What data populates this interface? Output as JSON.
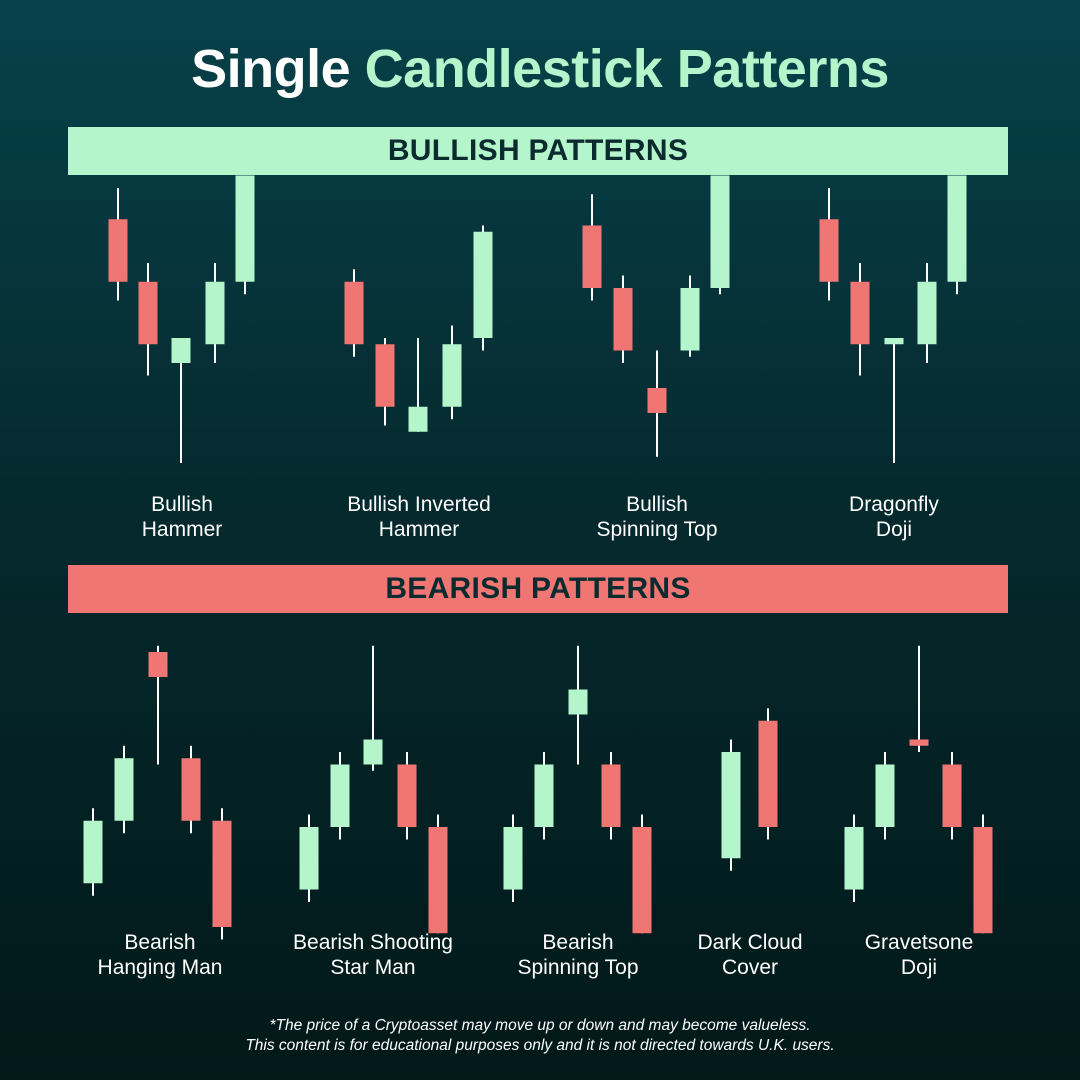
{
  "title": {
    "part1": "Single",
    "part2": "Candlestick Patterns"
  },
  "colors": {
    "bull": "#b5f5cc",
    "bear": "#f07673",
    "wick": "#ffffff"
  },
  "sections": {
    "bullish": {
      "heading": "BULLISH PATTERNS"
    },
    "bearish": {
      "heading": "BEARISH PATTERNS"
    }
  },
  "labels": {
    "bullish_hammer": [
      "Bullish",
      "Hammer"
    ],
    "bullish_inverted_hammer": [
      "Bullish Inverted",
      "Hammer"
    ],
    "bullish_spinning_top": [
      "Bullish",
      "Spinning Top"
    ],
    "dragonfly_doji": [
      "Dragonfly",
      "Doji"
    ],
    "bearish_hanging_man": [
      "Bearish",
      "Hanging Man"
    ],
    "bearish_shooting_star": [
      "Bearish Shooting",
      "Star Man"
    ],
    "bearish_spinning_top": [
      "Bearish",
      "Spinning Top"
    ],
    "dark_cloud_cover": [
      "Dark Cloud",
      "Cover"
    ],
    "gravestone_doji": [
      "Gravetsone",
      "Doji"
    ]
  },
  "disclaimer": [
    "*The price of a Cryptoasset may move up or down and may become valueless.",
    "This content is for educational purposes only and it is not directed towards U.K. users."
  ],
  "chart_data": [
    {
      "type": "candlestick",
      "name": "Bullish Hammer",
      "section": "bullish",
      "candles": [
        {
          "o": 77,
          "h": 82,
          "l": 64,
          "c": 67
        },
        {
          "o": 67,
          "h": 70,
          "l": 52,
          "c": 57
        },
        {
          "o": 54,
          "h": 58,
          "l": 38,
          "c": 58
        },
        {
          "o": 57,
          "h": 70,
          "l": 54,
          "c": 67
        },
        {
          "o": 67,
          "h": 84,
          "l": 65,
          "c": 84
        }
      ]
    },
    {
      "type": "candlestick",
      "name": "Bullish Inverted Hammer",
      "section": "bullish",
      "candles": [
        {
          "o": 67,
          "h": 69,
          "l": 55,
          "c": 57
        },
        {
          "o": 57,
          "h": 58,
          "l": 44,
          "c": 47
        },
        {
          "o": 43,
          "h": 58,
          "l": 43,
          "c": 47
        },
        {
          "o": 47,
          "h": 60,
          "l": 45,
          "c": 57
        },
        {
          "o": 58,
          "h": 76,
          "l": 56,
          "c": 75
        }
      ]
    },
    {
      "type": "candlestick",
      "name": "Bullish Spinning Top",
      "section": "bullish",
      "candles": [
        {
          "o": 76,
          "h": 81,
          "l": 64,
          "c": 66
        },
        {
          "o": 66,
          "h": 68,
          "l": 54,
          "c": 56
        },
        {
          "o": 50,
          "h": 56,
          "l": 39,
          "c": 46
        },
        {
          "o": 56,
          "h": 68,
          "l": 55,
          "c": 66
        },
        {
          "o": 66,
          "h": 84,
          "l": 65,
          "c": 84
        }
      ]
    },
    {
      "type": "candlestick",
      "name": "Dragonfly Doji",
      "section": "bullish",
      "candles": [
        {
          "o": 77,
          "h": 82,
          "l": 64,
          "c": 67
        },
        {
          "o": 67,
          "h": 70,
          "l": 52,
          "c": 57
        },
        {
          "o": 57,
          "h": 58,
          "l": 38,
          "c": 58
        },
        {
          "o": 57,
          "h": 70,
          "l": 54,
          "c": 67
        },
        {
          "o": 67,
          "h": 84,
          "l": 65,
          "c": 84
        }
      ]
    },
    {
      "type": "candlestick",
      "name": "Bearish Hanging Man",
      "section": "bearish",
      "candles": [
        {
          "o": 43,
          "h": 55,
          "l": 41,
          "c": 53
        },
        {
          "o": 53,
          "h": 65,
          "l": 51,
          "c": 63
        },
        {
          "o": 80,
          "h": 81,
          "l": 62,
          "c": 76
        },
        {
          "o": 63,
          "h": 65,
          "l": 51,
          "c": 53
        },
        {
          "o": 53,
          "h": 55,
          "l": 34,
          "c": 36
        }
      ]
    },
    {
      "type": "candlestick",
      "name": "Bearish Shooting Star Man",
      "section": "bearish",
      "candles": [
        {
          "o": 42,
          "h": 54,
          "l": 40,
          "c": 52
        },
        {
          "o": 52,
          "h": 64,
          "l": 50,
          "c": 62
        },
        {
          "o": 62,
          "h": 81,
          "l": 61,
          "c": 66
        },
        {
          "o": 62,
          "h": 64,
          "l": 50,
          "c": 52
        },
        {
          "o": 52,
          "h": 54,
          "l": 35,
          "c": 35
        }
      ]
    },
    {
      "type": "candlestick",
      "name": "Bearish Spinning Top",
      "section": "bearish",
      "candles": [
        {
          "o": 42,
          "h": 54,
          "l": 40,
          "c": 52
        },
        {
          "o": 52,
          "h": 64,
          "l": 50,
          "c": 62
        },
        {
          "o": 70,
          "h": 81,
          "l": 62,
          "c": 74
        },
        {
          "o": 62,
          "h": 64,
          "l": 50,
          "c": 52
        },
        {
          "o": 52,
          "h": 54,
          "l": 35,
          "c": 35
        }
      ]
    },
    {
      "type": "candlestick",
      "name": "Dark Cloud Cover",
      "section": "bearish",
      "candles": [
        {
          "o": 47,
          "h": 66,
          "l": 45,
          "c": 64
        },
        {
          "o": 69,
          "h": 71,
          "l": 50,
          "c": 52
        }
      ]
    },
    {
      "type": "candlestick",
      "name": "Gravetsone Doji",
      "section": "bearish",
      "candles": [
        {
          "o": 42,
          "h": 54,
          "l": 40,
          "c": 52
        },
        {
          "o": 52,
          "h": 64,
          "l": 50,
          "c": 62
        },
        {
          "o": 66,
          "h": 81,
          "l": 64,
          "c": 65
        },
        {
          "o": 62,
          "h": 64,
          "l": 50,
          "c": 52
        },
        {
          "o": 52,
          "h": 54,
          "l": 35,
          "c": 35
        }
      ]
    }
  ]
}
